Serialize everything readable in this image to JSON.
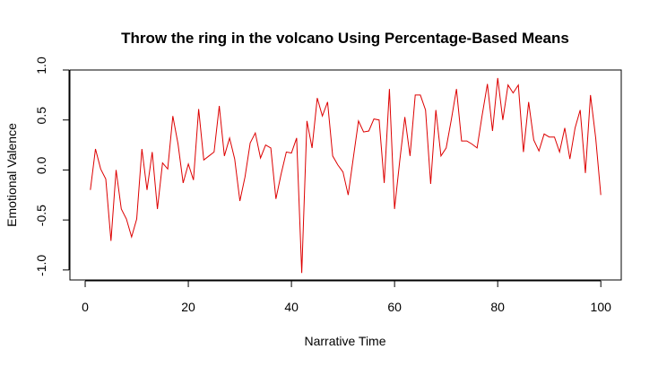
{
  "chart_data": {
    "type": "line",
    "title": "Throw the ring in the volcano Using Percentage-Based Means",
    "xlabel": "Narrative Time",
    "ylabel": "Emotional Valence",
    "xlim": [
      -2.96,
      103.96
    ],
    "ylim": [
      -1.1,
      1.0
    ],
    "x_ticks": [
      0,
      20,
      40,
      60,
      80,
      100
    ],
    "x_tick_labels": [
      "0",
      "20",
      "40",
      "60",
      "80",
      "100"
    ],
    "y_ticks": [
      -1.0,
      -0.5,
      0.0,
      0.5,
      1.0
    ],
    "y_tick_labels": [
      "-1.0",
      "-0.5",
      "0.0",
      "0.5",
      "1.0"
    ],
    "grid": false,
    "legend": "none",
    "series": [
      {
        "color": "#dd0000",
        "x": [
          1,
          2,
          3,
          4,
          5,
          6,
          7,
          8,
          9,
          10,
          11,
          12,
          13,
          14,
          15,
          16,
          17,
          18,
          19,
          20,
          21,
          22,
          23,
          24,
          25,
          26,
          27,
          28,
          29,
          30,
          31,
          32,
          33,
          34,
          35,
          36,
          37,
          38,
          39,
          40,
          41,
          42,
          43,
          44,
          45,
          46,
          47,
          48,
          49,
          50,
          51,
          52,
          53,
          54,
          55,
          56,
          57,
          58,
          59,
          60,
          61,
          62,
          63,
          64,
          65,
          66,
          67,
          68,
          69,
          70,
          71,
          72,
          73,
          74,
          75,
          76,
          77,
          78,
          79,
          80,
          81,
          82,
          83,
          84,
          85,
          86,
          87,
          88,
          89,
          90,
          91,
          92,
          93,
          94,
          95,
          96,
          97,
          98,
          99,
          100
        ],
        "values": [
          -0.2,
          0.21,
          0.01,
          -0.09,
          -0.71,
          0.0,
          -0.39,
          -0.49,
          -0.67,
          -0.49,
          0.21,
          -0.2,
          0.18,
          -0.39,
          0.07,
          0.01,
          0.54,
          0.26,
          -0.13,
          0.06,
          -0.1,
          0.61,
          0.1,
          0.14,
          0.18,
          0.64,
          0.14,
          0.32,
          0.11,
          -0.31,
          -0.07,
          0.27,
          0.37,
          0.12,
          0.25,
          0.22,
          -0.29,
          -0.04,
          0.18,
          0.17,
          0.32,
          -1.03,
          0.49,
          0.22,
          0.72,
          0.54,
          0.68,
          0.14,
          0.05,
          -0.02,
          -0.25,
          0.12,
          0.49,
          0.38,
          0.39,
          0.51,
          0.5,
          -0.13,
          0.81,
          -0.39,
          0.09,
          0.53,
          0.14,
          0.75,
          0.75,
          0.6,
          -0.14,
          0.6,
          0.14,
          0.22,
          0.5,
          0.81,
          0.29,
          0.29,
          0.26,
          0.22,
          0.55,
          0.86,
          0.39,
          0.92,
          0.5,
          0.85,
          0.77,
          0.85,
          0.18,
          0.68,
          0.3,
          0.19,
          0.36,
          0.33,
          0.33,
          0.18,
          0.42,
          0.11,
          0.42,
          0.6,
          -0.03,
          0.75,
          0.32,
          -0.25
        ]
      }
    ]
  }
}
